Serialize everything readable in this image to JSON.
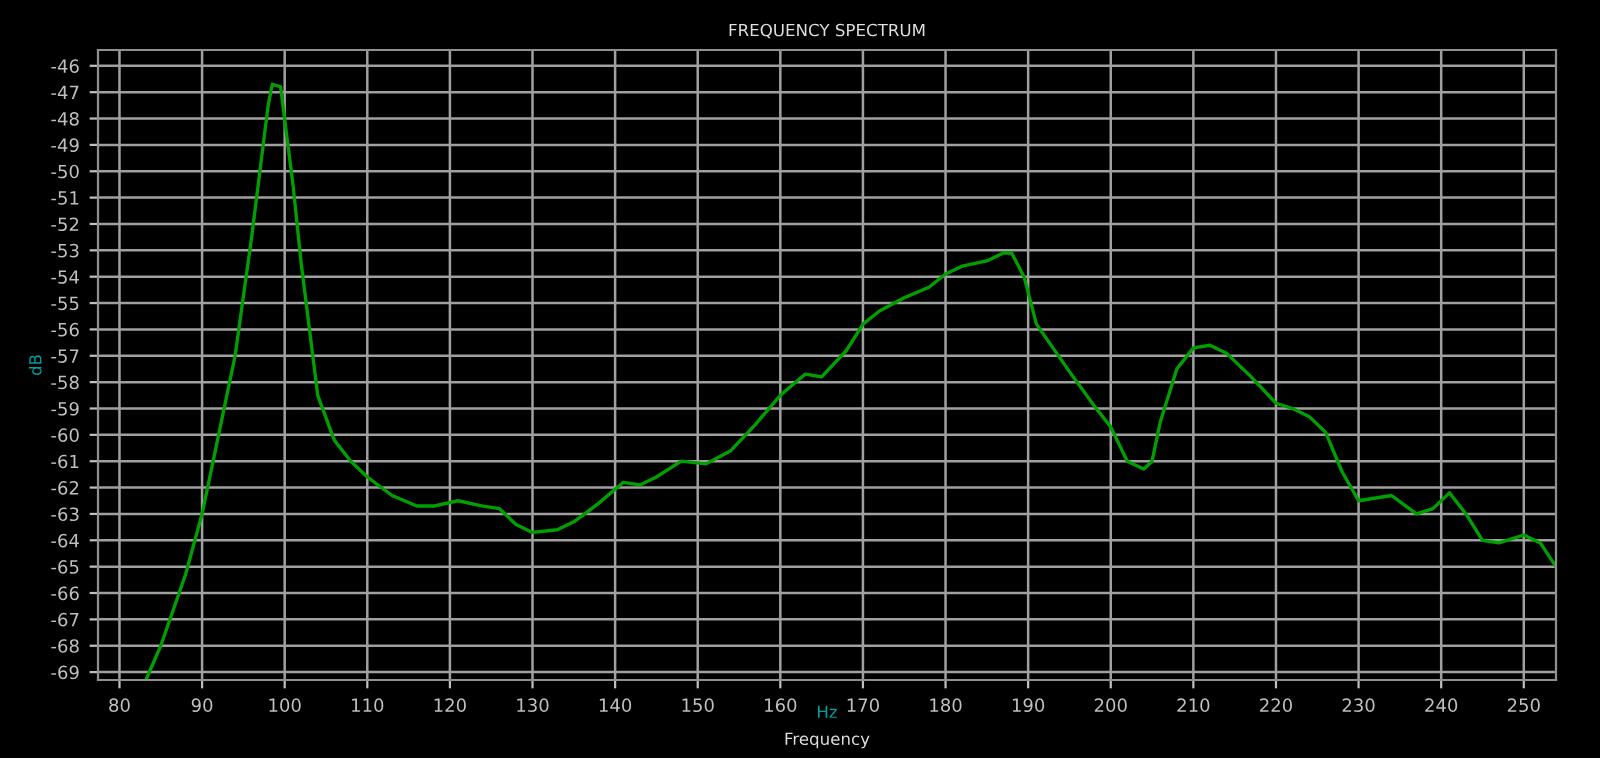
{
  "chart_data": {
    "type": "line",
    "title": "FREQUENCY SPECTRUM",
    "xlabel": "Frequency",
    "ylabel": "dB",
    "annotations": [
      "Hz"
    ],
    "x": [
      83.2,
      85,
      88,
      90,
      92,
      94,
      96,
      98,
      98.5,
      99.5,
      101,
      102,
      103,
      104,
      106,
      108,
      110,
      113,
      116,
      118,
      121,
      124,
      126,
      128,
      130,
      133,
      135,
      138,
      141,
      143,
      145,
      148,
      151,
      154,
      157,
      160,
      163,
      165,
      168,
      170,
      172,
      175,
      178,
      180,
      182,
      185,
      187,
      188,
      189.5,
      191,
      193,
      195,
      198,
      200,
      202,
      204,
      205,
      206,
      208,
      210,
      212,
      214,
      217,
      220,
      222,
      224,
      226,
      228,
      230,
      234,
      237,
      239,
      241,
      243,
      245,
      247,
      250,
      252,
      253.9
    ],
    "series": [
      {
        "color": "#00a000",
        "values": [
          -69.3,
          -68,
          -65.3,
          -63,
          -60,
          -57,
          -52.5,
          -47.5,
          -46.7,
          -46.8,
          -50.5,
          -53.5,
          -56,
          -58.5,
          -60.2,
          -61,
          -61.6,
          -62.3,
          -62.7,
          -62.7,
          -62.5,
          -62.7,
          -62.8,
          -63.4,
          -63.7,
          -63.6,
          -63.3,
          -62.6,
          -61.8,
          -61.9,
          -61.6,
          -61,
          -61.1,
          -60.6,
          -59.6,
          -58.5,
          -57.7,
          -57.8,
          -56.8,
          -55.8,
          -55.3,
          -54.8,
          -54.4,
          -53.9,
          -53.6,
          -53.4,
          -53.1,
          -53.1,
          -54,
          -55.8,
          -56.7,
          -57.6,
          -58.9,
          -59.7,
          -61,
          -61.3,
          -61,
          -59.5,
          -57.5,
          -56.7,
          -56.6,
          -56.9,
          -57.8,
          -58.8,
          -59,
          -59.3,
          -59.9,
          -61.4,
          -62.5,
          -62.3,
          -63,
          -62.8,
          -62.2,
          -63,
          -64,
          -64.1,
          -63.8,
          -64.1,
          -65
        ]
      }
    ],
    "xlim": [
      77.4,
      253.9
    ],
    "ylim": [
      -69.3,
      -45.4
    ],
    "xticks": [
      80,
      90,
      100,
      110,
      120,
      130,
      140,
      150,
      160,
      170,
      180,
      190,
      200,
      210,
      220,
      230,
      240,
      250
    ],
    "yticks": [
      -46,
      -47,
      -48,
      -49,
      -50,
      -51,
      -52,
      -53,
      -54,
      -55,
      -56,
      -57,
      -58,
      -59,
      -60,
      -61,
      -62,
      -63,
      -64,
      -65,
      -66,
      -67,
      -68,
      -69
    ],
    "grid": true,
    "marker": "none",
    "line_style": "solid"
  }
}
